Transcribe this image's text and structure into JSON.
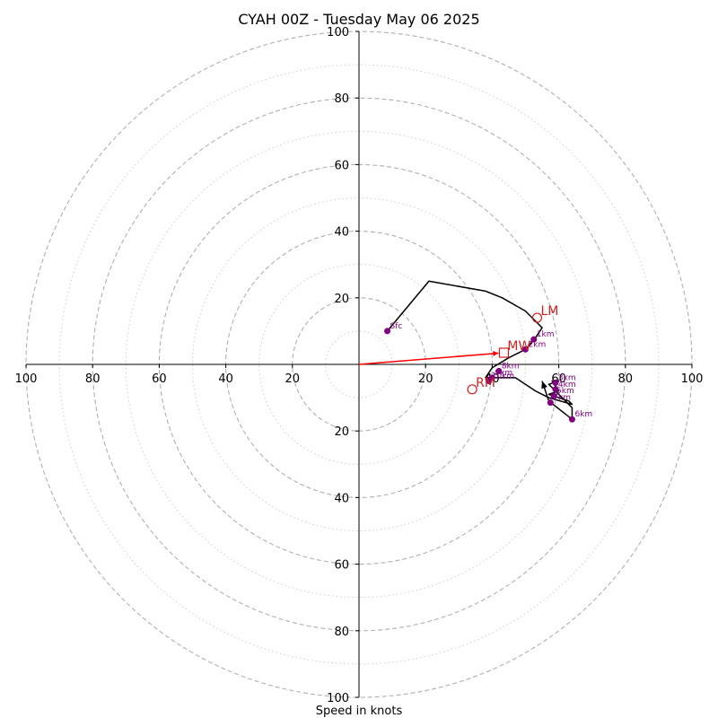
{
  "chart_data": {
    "type": "scatter",
    "title": "CYAH 00Z - Tuesday May 06 2025",
    "xlabel": "Speed in knots",
    "ylabel": "",
    "xlim": [
      -100,
      100
    ],
    "ylim": [
      -100,
      100
    ],
    "ring_major": [
      20,
      40,
      60,
      80,
      100
    ],
    "ring_minor": [
      10,
      30,
      50,
      70,
      90
    ],
    "tick_values": [
      20,
      40,
      60,
      80,
      100
    ],
    "tick_labels": [
      "20",
      "40",
      "60",
      "80",
      "100"
    ],
    "hodograph": {
      "x": [
        8.5,
        21,
        38,
        43,
        50,
        55,
        53,
        50,
        45,
        40,
        38,
        43,
        47,
        53,
        57,
        64,
        63,
        57,
        60,
        58,
        60,
        57,
        62,
        64,
        64,
        57,
        55
      ],
      "y": [
        10,
        25,
        22,
        20,
        16,
        11,
        8,
        4.5,
        2,
        -1,
        -4,
        -4,
        -4,
        -8,
        -10,
        -12,
        -11,
        -9,
        -8,
        -5,
        -5,
        -6,
        -11,
        -13,
        -16.5,
        -11,
        -5
      ]
    },
    "height_points": [
      {
        "label": "Sfc",
        "x": 8.5,
        "y": 10
      },
      {
        "label": "1km",
        "x": 52.5,
        "y": 7.5
      },
      {
        "label": "2km",
        "x": 50,
        "y": 4.5
      },
      {
        "label": "3km",
        "x": 59,
        "y": -5.5
      },
      {
        "label": "4km",
        "x": 59,
        "y": -7.5
      },
      {
        "label": "5km",
        "x": 58.5,
        "y": -9.5
      },
      {
        "label": "6km",
        "x": 64,
        "y": -16.5
      },
      {
        "label": "7km",
        "x": 57.5,
        "y": -11.5
      },
      {
        "label": "8km",
        "x": 42,
        "y": -2
      },
      {
        "label": "9km",
        "x": 40,
        "y": -4
      },
      {
        "label": "10km",
        "x": 39,
        "y": -5
      }
    ],
    "motion_vectors": [
      {
        "label": "LM",
        "x": 53.5,
        "y": 14,
        "marker": "circle"
      },
      {
        "label": "RM",
        "x": 34,
        "y": -7.5,
        "marker": "circle"
      },
      {
        "label": "MW",
        "x": 43.5,
        "y": 3.5,
        "marker": "square"
      }
    ],
    "storm_vector": {
      "from": [
        0,
        0
      ],
      "to": [
        43.5,
        3.5
      ],
      "color": "#ff0000"
    },
    "colors": {
      "hodograph": "#000000",
      "height_points": "#800080",
      "motion": "#cc2222",
      "rings": "#b0b0b0",
      "axes": "#000000"
    },
    "grid": true
  }
}
